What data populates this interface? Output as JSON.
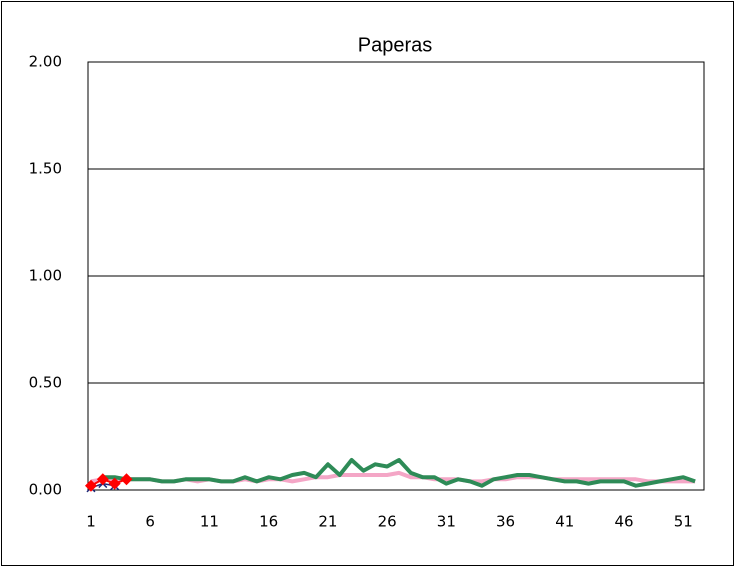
{
  "chart_data": {
    "type": "line",
    "title": "Paperas",
    "categories": [
      1,
      null,
      null,
      null,
      null,
      6,
      null,
      null,
      null,
      null,
      11,
      null,
      null,
      null,
      null,
      16,
      null,
      null,
      null,
      null,
      21,
      null,
      null,
      null,
      null,
      26,
      null,
      null,
      null,
      null,
      31,
      null,
      null,
      null,
      null,
      36,
      null,
      null,
      null,
      null,
      41,
      null,
      null,
      null,
      null,
      46,
      null,
      null,
      null,
      null,
      51,
      null
    ],
    "series": [
      {
        "color": "#f4a6c6",
        "width": 4,
        "values": [
          0.04,
          0.05,
          0.05,
          0.05,
          0.05,
          0.05,
          0.04,
          0.04,
          0.05,
          0.04,
          0.05,
          0.04,
          0.04,
          0.05,
          0.04,
          0.05,
          0.05,
          0.04,
          0.05,
          0.06,
          0.06,
          0.07,
          0.07,
          0.07,
          0.07,
          0.07,
          0.08,
          0.06,
          0.06,
          0.05,
          0.05,
          0.05,
          0.04,
          0.04,
          0.05,
          0.05,
          0.06,
          0.06,
          0.06,
          0.05,
          0.05,
          0.05,
          0.05,
          0.05,
          0.05,
          0.05,
          0.05,
          0.04,
          0.04,
          0.04,
          0.04,
          0.04
        ]
      },
      {
        "color": "#2e8b57",
        "width": 4,
        "values": [
          null,
          0.06,
          0.06,
          0.05,
          0.05,
          0.05,
          0.04,
          0.04,
          0.05,
          0.05,
          0.05,
          0.04,
          0.04,
          0.06,
          0.04,
          0.06,
          0.05,
          0.07,
          0.08,
          0.06,
          0.12,
          0.07,
          0.14,
          0.09,
          0.12,
          0.11,
          0.14,
          0.08,
          0.06,
          0.06,
          0.03,
          0.05,
          0.04,
          0.02,
          0.05,
          0.06,
          0.07,
          0.07,
          0.06,
          0.05,
          0.04,
          0.04,
          0.03,
          0.04,
          0.04,
          0.04,
          0.02,
          0.03,
          0.04,
          0.05,
          0.06,
          0.04
        ]
      },
      {
        "color": "#1f2a7a",
        "width": 1.5,
        "marker": "x",
        "values": [
          0.01,
          0.03,
          0.02,
          null,
          null,
          null,
          null,
          null,
          null,
          null,
          null,
          null,
          null,
          null,
          null,
          null,
          null,
          null,
          null,
          null,
          null,
          null,
          null,
          null,
          null,
          null,
          null,
          null,
          null,
          null,
          null,
          null,
          null,
          null,
          null,
          null,
          null,
          null,
          null,
          null,
          null,
          null,
          null,
          null,
          null,
          null,
          null,
          null,
          null,
          null,
          null,
          null
        ]
      },
      {
        "color": "#ff0000",
        "width": 2,
        "marker": "diamond",
        "values": [
          0.02,
          0.05,
          0.03,
          0.05,
          null,
          null,
          null,
          null,
          null,
          null,
          null,
          null,
          null,
          null,
          null,
          null,
          null,
          null,
          null,
          null,
          null,
          null,
          null,
          null,
          null,
          null,
          null,
          null,
          null,
          null,
          null,
          null,
          null,
          null,
          null,
          null,
          null,
          null,
          null,
          null,
          null,
          null,
          null,
          null,
          null,
          null,
          null,
          null,
          null,
          null,
          null,
          null
        ]
      }
    ],
    "ylim": [
      0,
      2
    ],
    "yticks": [
      {
        "value": 0,
        "label": "0.00"
      },
      {
        "value": 0.5,
        "label": "0.50"
      },
      {
        "value": 1,
        "label": "1.00"
      },
      {
        "value": 1.5,
        "label": "1.50"
      },
      {
        "value": 2,
        "label": "2.00"
      }
    ],
    "grid": true
  }
}
